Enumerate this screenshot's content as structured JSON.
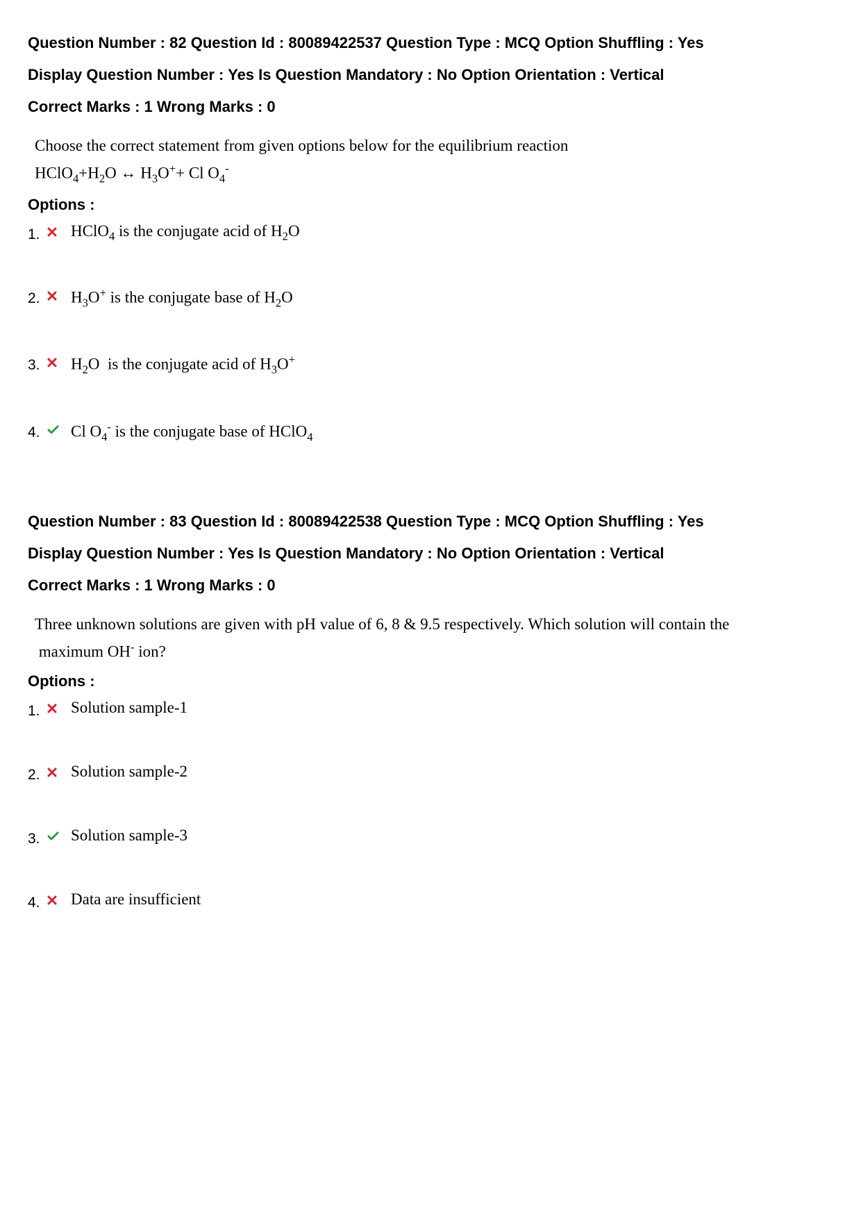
{
  "colors": {
    "text": "#000000",
    "background": "#ffffff",
    "wrong": "#d9232e",
    "correct": "#2e9c3e"
  },
  "labels": {
    "questionNumber": "Question Number :",
    "questionId": "Question Id :",
    "questionType": "Question Type :",
    "optionShuffling": "Option Shuffling :",
    "displayQuestionNumber": "Display Question Number :",
    "isMandatory": "Is Question Mandatory :",
    "optionOrientation": "Option Orientation :",
    "correctMarks": "Correct Marks :",
    "wrongMarks": "Wrong Marks :",
    "options": "Options :"
  },
  "questions": [
    {
      "number": "82",
      "id": "80089422537",
      "type": "MCQ",
      "shuffle": "Yes",
      "displayNumber": "Yes",
      "mandatory": "No",
      "orientation": "Vertical",
      "correctMarks": "1",
      "wrongMarks": "0",
      "prompt_html": "Choose the correct statement from given options below for the equilibrium reaction<br>HClO<sub>4</sub>+H<sub>2</sub>O ↔ H<sub>3</sub>O<sup>+</sup>+ Cl O<sub>4</sub><sup>-</sup>",
      "options": [
        {
          "num": "1.",
          "correct": false,
          "text_html": "HClO<sub>4</sub> is the conjugate acid of H<sub>2</sub>O"
        },
        {
          "num": "2.",
          "correct": false,
          "text_html": "H<sub>3</sub>O<sup>+</sup> is the conjugate base of H<sub>2</sub>O"
        },
        {
          "num": "3.",
          "correct": false,
          "text_html": "H<sub>2</sub>O&nbsp; is the conjugate acid of H<sub>3</sub>O<sup>+</sup>"
        },
        {
          "num": "4.",
          "correct": true,
          "text_html": "Cl O<sub>4</sub><sup>-</sup> is the conjugate base of HClO<sub>4</sub>"
        }
      ]
    },
    {
      "number": "83",
      "id": "80089422538",
      "type": "MCQ",
      "shuffle": "Yes",
      "displayNumber": "Yes",
      "mandatory": "No",
      "orientation": "Vertical",
      "correctMarks": "1",
      "wrongMarks": "0",
      "prompt_html": "Three unknown solutions are given with pH value of 6, 8 &amp; 9.5 respectively. Which solution will contain the<br>&nbsp;maximum OH<sup>-</sup> ion?",
      "options": [
        {
          "num": "1.",
          "correct": false,
          "text_html": "Solution sample-1"
        },
        {
          "num": "2.",
          "correct": false,
          "text_html": "Solution sample-2"
        },
        {
          "num": "3.",
          "correct": true,
          "text_html": "Solution sample-3"
        },
        {
          "num": "4.",
          "correct": false,
          "text_html": "Data are insufficient"
        }
      ]
    }
  ]
}
